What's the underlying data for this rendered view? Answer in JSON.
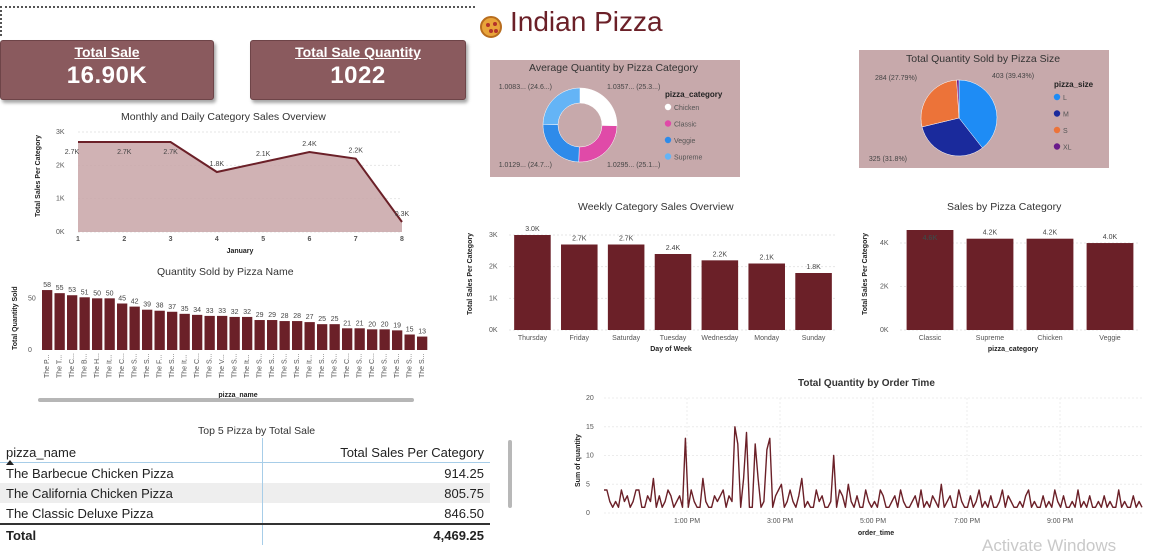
{
  "header": {
    "title": "Indian Pizza"
  },
  "kpis": {
    "total_sale": {
      "label": "Total Sale",
      "value": "16.90K"
    },
    "total_qty": {
      "label": "Total Sale Quantity",
      "value": "1022"
    }
  },
  "watermark": "Activate Windows",
  "colors": {
    "primary": "#6b2028",
    "kpi_bg": "#8a5a5e",
    "panel_bg": "#c7a9ab",
    "area_fill": "#c8a5a7"
  },
  "table": {
    "title": "Top 5 Pizza by Total Sale",
    "headers": [
      "pizza_name",
      "Total Sales Per Category"
    ],
    "rows": [
      [
        "The Barbecue Chicken Pizza",
        "914.25"
      ],
      [
        "The California Chicken Pizza",
        "805.75"
      ],
      [
        "The Classic Deluxe Pizza",
        "846.50"
      ]
    ],
    "total_label": "Total",
    "total_value": "4,469.25"
  },
  "chart_data": [
    {
      "id": "monthly",
      "type": "area",
      "title": "Monthly and Daily Category Sales Overview",
      "xlabel": "January",
      "ylabel": "Total Sales Per Category",
      "x": [
        1,
        2,
        3,
        4,
        5,
        6,
        7,
        8
      ],
      "values": [
        2700,
        2700,
        2700,
        1800,
        2100,
        2400,
        2200,
        300
      ],
      "data_labels": [
        "2.7K",
        "2.7K",
        "2.7K",
        "1.8K",
        "2.1K",
        "2.4K",
        "2.2K",
        "0.3K"
      ],
      "yticks": [
        "0K",
        "1K",
        "2K",
        "3K"
      ],
      "ylim": [
        0,
        3000
      ]
    },
    {
      "id": "byname",
      "type": "bar",
      "title": "Quantity Sold by Pizza Name",
      "xlabel": "pizza_name",
      "ylabel": "Total Quantity Sold",
      "values": [
        58,
        55,
        53,
        51,
        50,
        50,
        45,
        42,
        39,
        38,
        37,
        35,
        34,
        33,
        33,
        32,
        32,
        29,
        29,
        28,
        28,
        27,
        25,
        25,
        21,
        21,
        20,
        20,
        19,
        15,
        13
      ],
      "categories": [
        "The P...",
        "The T...",
        "The C...",
        "The B...",
        "The H...",
        "The It...",
        "The C...",
        "The S...",
        "The S...",
        "The F...",
        "The S...",
        "The It...",
        "The C...",
        "The S...",
        "The V...",
        "The S...",
        "The It...",
        "The S...",
        "The S...",
        "The S...",
        "The S...",
        "The It...",
        "The S...",
        "The S...",
        "The C...",
        "The S...",
        "The C...",
        "The S...",
        "The S...",
        "The S...",
        "The S..."
      ],
      "yticks": [
        "0",
        "50"
      ],
      "ylim": [
        0,
        60
      ]
    },
    {
      "id": "avgcat",
      "type": "pie",
      "title": "Average Quantity by Pizza Category",
      "legend_title": "pizza_category",
      "categories": [
        "Chicken",
        "Classic",
        "Veggie",
        "Supreme"
      ],
      "values": [
        1.0357,
        1.0295,
        1.0129,
        1.0083
      ],
      "colors": [
        "#ffffff",
        "#e04aa8",
        "#2e8bea",
        "#64b4f6"
      ],
      "data_labels": [
        "1.0357... (25.3...)",
        "1.0295... (25.1...)",
        "1.0129... (24.7...)",
        "1.0083... (24.6...)"
      ],
      "legend": "right"
    },
    {
      "id": "bysize",
      "type": "pie",
      "title": "Total Quantity Sold by Pizza Size",
      "legend_title": "pizza_size",
      "categories": [
        "L",
        "M",
        "S",
        "XL"
      ],
      "values": [
        403,
        325,
        284,
        10
      ],
      "colors": [
        "#1e8cf5",
        "#1a2a9c",
        "#ec7339",
        "#6a1b8a"
      ],
      "data_labels": [
        "403 (39.43%)",
        "325 (31.8%)",
        "284 (27.79%)",
        ""
      ],
      "legend": "right"
    },
    {
      "id": "weekly",
      "type": "bar",
      "title": "Weekly Category Sales Overview",
      "xlabel": "Day of Week",
      "ylabel": "Total Sales Per Category",
      "categories": [
        "Thursday",
        "Friday",
        "Saturday",
        "Tuesday",
        "Wednesday",
        "Monday",
        "Sunday"
      ],
      "values": [
        3000,
        2700,
        2700,
        2400,
        2200,
        2100,
        1800
      ],
      "data_labels": [
        "3.0K",
        "2.7K",
        "2.7K",
        "2.4K",
        "2.2K",
        "2.1K",
        "1.8K"
      ],
      "yticks": [
        "0K",
        "1K",
        "2K",
        "3K"
      ],
      "ylim": [
        0,
        3000
      ]
    },
    {
      "id": "bycat",
      "type": "bar",
      "title": "Sales by Pizza Category",
      "xlabel": "pizza_category",
      "ylabel": "Total Sales Per Category",
      "categories": [
        "Classic",
        "Supreme",
        "Chicken",
        "Veggie"
      ],
      "values": [
        4600,
        4200,
        4200,
        4000
      ],
      "data_labels": [
        "4.6K",
        "4.2K",
        "4.2K",
        "4.0K"
      ],
      "yticks": [
        "0K",
        "2K",
        "4K"
      ],
      "ylim": [
        0,
        4600
      ]
    },
    {
      "id": "ordertime",
      "type": "line",
      "title": "Total Quantity by Order Time",
      "xlabel": "order_time",
      "ylabel": "Sum of quantity",
      "xticks": [
        "1:00 PM",
        "3:00 PM",
        "5:00 PM",
        "7:00 PM",
        "9:00 PM"
      ],
      "yticks": [
        "0",
        "5",
        "10",
        "15",
        "20"
      ],
      "ylim": [
        0,
        20
      ],
      "values": [
        4,
        4,
        2,
        1,
        2,
        1,
        4,
        2,
        3,
        1,
        2,
        4,
        4,
        1,
        1,
        3,
        2,
        6,
        1,
        3,
        1,
        2,
        4,
        3,
        1,
        2,
        3,
        1,
        13,
        1,
        4,
        2,
        1,
        1,
        6,
        2,
        1,
        1,
        3,
        2,
        3,
        4,
        1,
        3,
        2,
        15,
        12,
        1,
        6,
        14,
        1,
        1,
        12,
        6,
        1,
        2,
        11,
        13,
        1,
        3,
        4,
        5,
        1,
        2,
        4,
        2,
        1,
        3,
        6,
        1,
        2,
        1,
        1,
        4,
        2,
        3,
        1,
        1,
        2,
        10,
        1,
        4,
        3,
        1,
        5,
        2,
        1,
        3,
        1,
        1,
        4,
        2,
        1,
        2,
        1,
        4,
        3,
        1,
        1,
        2,
        3,
        1,
        4,
        2,
        1,
        1,
        2,
        3,
        1,
        4,
        1,
        2,
        1,
        3,
        2,
        1,
        5,
        1,
        2,
        3,
        1,
        1,
        4,
        2,
        1,
        1,
        3,
        1,
        2,
        4,
        1,
        2,
        1,
        3,
        1,
        1,
        2,
        4,
        1,
        3,
        2,
        1,
        1,
        2,
        1,
        3,
        4,
        1,
        2,
        1,
        1,
        3,
        1,
        2,
        1,
        4,
        2,
        1,
        3,
        1,
        1,
        2,
        1,
        4,
        1,
        2,
        1,
        3,
        1,
        1,
        2,
        1,
        3,
        1,
        2,
        1,
        1,
        4,
        1,
        2,
        1,
        1,
        3,
        1,
        2,
        1
      ]
    }
  ]
}
